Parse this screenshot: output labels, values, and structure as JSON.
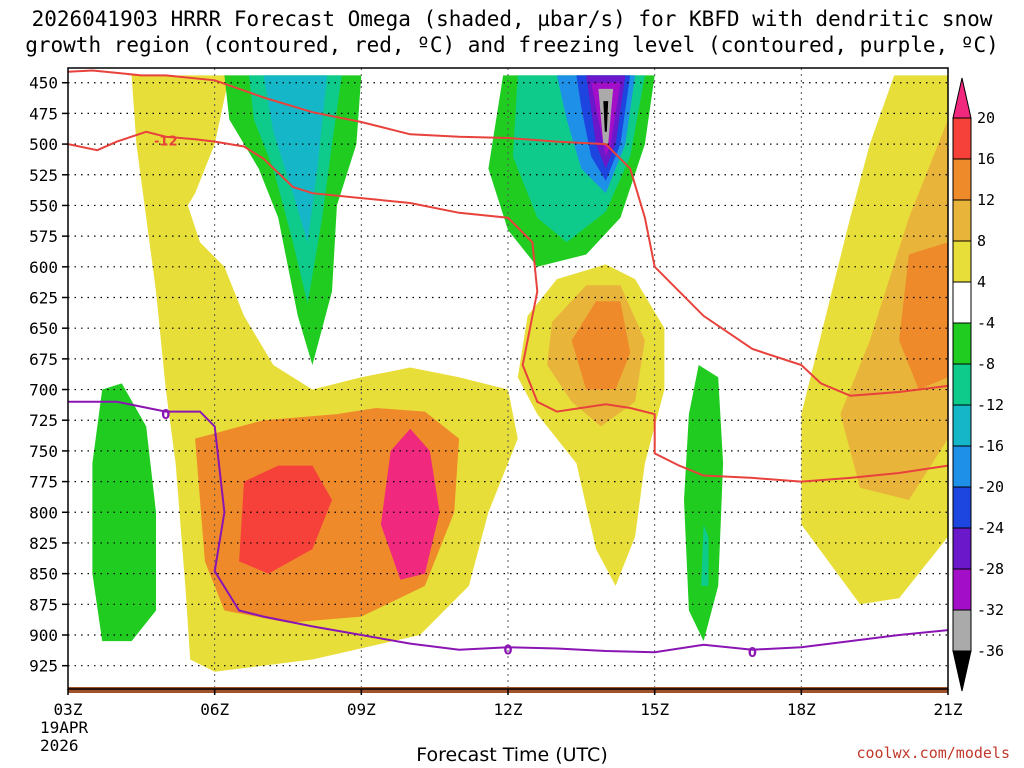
{
  "title": {
    "line1": "2026041903 HRRR Forecast Omega (shaded, µbar/s) for KBFD with dendritic snow",
    "line2": "growth region (contoured, red, ºC) and freezing level (contoured, purple, ºC)"
  },
  "xlabel": "Forecast Time (UTC)",
  "credit": "coolwx.com/models",
  "date_label": {
    "day": "19APR",
    "year": "2026"
  },
  "colors": {
    "red_contour": "#e8423c",
    "purple_contour": "#8a15b3",
    "ground": "#a0522d"
  },
  "chart_data": {
    "type": "heatmap",
    "title": "2026041903 HRRR Forecast Omega (shaded, µbar/s) for KBFD with dendritic snow growth region (contoured, red, ºC) and freezing level (contoured, purple, ºC)",
    "xlabel": "Forecast Time (UTC)",
    "ylabel": "",
    "x_ticks": [
      "03Z",
      "06Z",
      "09Z",
      "12Z",
      "15Z",
      "18Z",
      "21Z"
    ],
    "x_range_hours": [
      3,
      21
    ],
    "y_ticks": [
      450,
      475,
      500,
      525,
      550,
      575,
      600,
      625,
      650,
      675,
      700,
      725,
      750,
      775,
      800,
      825,
      850,
      875,
      900,
      925
    ],
    "y_range_hPa": [
      438,
      944
    ],
    "y_inverted": true,
    "grid": true,
    "colorbar": {
      "levels": [
        20,
        16,
        12,
        8,
        4,
        -4,
        -8,
        -12,
        -16,
        -20,
        -24,
        -28,
        -32,
        -36
      ],
      "colors": [
        "#f0287e",
        "#f5413a",
        "#ee8a2a",
        "#e9b43a",
        "#e8de3a",
        "#ffffff",
        "#1fcc1f",
        "#0ecb8c",
        "#15b6c8",
        "#1e90e8",
        "#1d45e0",
        "#6a18c9",
        "#a30fc8",
        "#aaaaaa",
        "#000000"
      ]
    },
    "omega_regions": [
      {
        "label": "yellow band left column",
        "value_min": 4,
        "value_max": 8,
        "hours": [
          4.5,
          6.0
        ],
        "levels_hPa": [
          444,
          560
        ]
      },
      {
        "label": "green cell near 04Z",
        "value_min": -8,
        "value_max": -4,
        "hours": [
          3.5,
          4.5
        ],
        "levels_hPa": [
          695,
          905
        ]
      },
      {
        "label": "cyan streak 07-08Z",
        "value_min": -16,
        "value_max": -4,
        "hours": [
          6.3,
          8.7
        ],
        "levels_hPa": [
          444,
          680
        ]
      },
      {
        "label": "upward motion max 07Z",
        "value_min": 16,
        "value_max": 20,
        "hours": [
          6.8,
          8.3
        ],
        "levels_hPa": [
          770,
          850
        ]
      },
      {
        "label": "upward motion max 10Z",
        "value_min": 20,
        "value_max": 24,
        "hours": [
          9.4,
          10.6
        ],
        "levels_hPa": [
          740,
          860
        ]
      },
      {
        "label": "subsidence core 14Z",
        "value_min": -36,
        "value_max": -4,
        "hours": [
          11.9,
          15.0
        ],
        "levels_hPa": [
          444,
          600
        ]
      },
      {
        "label": "ascent 13-14Z",
        "value_min": 8,
        "value_max": 16,
        "hours": [
          13.0,
          14.6
        ],
        "levels_hPa": [
          600,
          720
        ]
      },
      {
        "label": "green sliver 16Z",
        "value_min": -12,
        "value_max": -4,
        "hours": [
          15.6,
          16.3
        ],
        "levels_hPa": [
          680,
          905
        ]
      },
      {
        "label": "ascent right edge",
        "value_min": 8,
        "value_max": 16,
        "hours": [
          18.0,
          21.0
        ],
        "levels_hPa": [
          444,
          800
        ]
      }
    ],
    "series": [
      {
        "name": "-12",
        "color": "#e8423c",
        "points": [
          [
            3.0,
            441
          ],
          [
            3.5,
            440
          ],
          [
            4.0,
            442
          ],
          [
            4.5,
            444
          ],
          [
            5.0,
            444
          ],
          [
            6.0,
            448
          ],
          [
            7.0,
            462
          ],
          [
            8.0,
            474
          ],
          [
            9.0,
            482
          ],
          [
            10.0,
            492
          ],
          [
            11.0,
            494
          ],
          [
            12.0,
            495
          ],
          [
            13.0,
            498
          ],
          [
            14.0,
            500
          ],
          [
            14.5,
            520
          ],
          [
            14.8,
            560
          ],
          [
            15.0,
            600
          ],
          [
            16.0,
            640
          ],
          [
            17.0,
            667
          ],
          [
            18.0,
            680
          ],
          [
            18.4,
            695
          ],
          [
            19.0,
            705
          ],
          [
            20.0,
            702
          ],
          [
            21.0,
            697
          ]
        ]
      },
      {
        "name": "-12",
        "color": "#e8423c",
        "points": [
          [
            3.0,
            500
          ],
          [
            3.6,
            505
          ],
          [
            4.0,
            498
          ],
          [
            4.6,
            490
          ],
          [
            5.0,
            494
          ],
          [
            5.6,
            496
          ],
          [
            6.0,
            498
          ],
          [
            6.6,
            502
          ],
          [
            7.0,
            512
          ],
          [
            7.6,
            535
          ],
          [
            8.0,
            540
          ],
          [
            9.0,
            544
          ],
          [
            10.0,
            548
          ],
          [
            11.0,
            556
          ],
          [
            12.0,
            560
          ],
          [
            12.5,
            580
          ],
          [
            12.6,
            620
          ],
          [
            12.3,
            680
          ],
          [
            12.6,
            710
          ],
          [
            13.0,
            718
          ],
          [
            14.0,
            712
          ],
          [
            14.5,
            715
          ],
          [
            15.0,
            720
          ],
          [
            15.0,
            752
          ],
          [
            15.5,
            762
          ],
          [
            16.0,
            770
          ],
          [
            17.0,
            772
          ],
          [
            18.0,
            775
          ],
          [
            19.0,
            772
          ],
          [
            20.0,
            768
          ],
          [
            21.0,
            762
          ]
        ]
      },
      {
        "name": "0",
        "color": "#8a15b3",
        "points": [
          [
            3.0,
            710
          ],
          [
            4.0,
            710
          ],
          [
            5.0,
            718
          ],
          [
            5.7,
            718
          ],
          [
            6.0,
            730
          ],
          [
            6.2,
            800
          ],
          [
            6.0,
            848
          ],
          [
            6.5,
            880
          ],
          [
            7.0,
            885
          ],
          [
            8.0,
            893
          ],
          [
            9.0,
            900
          ],
          [
            10.0,
            907
          ],
          [
            11.0,
            912
          ],
          [
            12.0,
            910
          ],
          [
            13.0,
            911
          ],
          [
            14.0,
            913
          ],
          [
            15.0,
            914
          ],
          [
            16.0,
            908
          ],
          [
            17.0,
            912
          ],
          [
            18.0,
            910
          ],
          [
            19.0,
            905
          ],
          [
            20.0,
            900
          ],
          [
            21.0,
            896
          ]
        ]
      }
    ],
    "annotations": [
      {
        "text": "-12",
        "hour": 5.0,
        "level_hPa": 497
      },
      {
        "text": "0",
        "hour": 5.0,
        "level_hPa": 720
      },
      {
        "text": "0",
        "hour": 12.0,
        "level_hPa": 912
      },
      {
        "text": "0",
        "hour": 17.0,
        "level_hPa": 914
      }
    ]
  }
}
